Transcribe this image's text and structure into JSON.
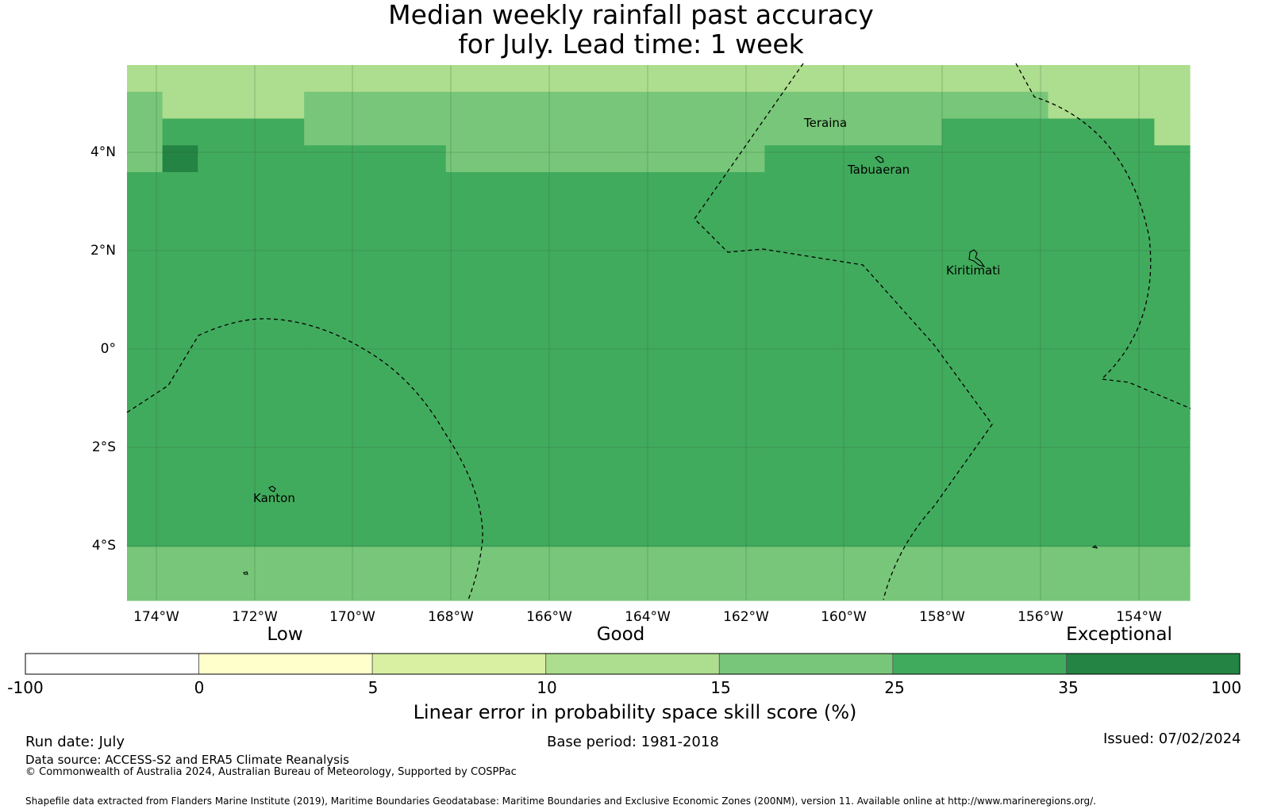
{
  "title": {
    "line1": "Median weekly rainfall past accuracy",
    "line2": "for July. Lead time: 1 week"
  },
  "map": {
    "lat_labels": [
      "4°N",
      "2°N",
      "0°",
      "2°S",
      "4°S"
    ],
    "lon_labels": [
      "174°W",
      "172°W",
      "170°W",
      "168°W",
      "166°W",
      "164°W",
      "162°W",
      "160°W",
      "158°W",
      "156°W",
      "154°W"
    ],
    "places": [
      "Teraina",
      "Tabuaeran",
      "Kiritimati",
      "Kanton"
    ],
    "level_colors": [
      "#ffffff",
      "#ffffcc",
      "#d9f0a3",
      "#addd8e",
      "#78c679",
      "#41ab5d",
      "#238443"
    ],
    "grid_legend": "level index per cell: 3=10–15, 4=15–25, 5=25–35, 6=35–100",
    "grid": [
      "333333333333333333333333333333",
      "433334444444444444444444443333",
      "455554444444444444444445555553",
      "465555555444444444555555555555",
      "555555555555555555555555555555",
      "555555555555555555555555555555",
      "555555555555555555555555555555",
      "555555555555555555555555555555",
      "555555555555555555555555555555",
      "555555555555555555555555555555",
      "555555555555555555555555555555",
      "555555555555555555555555555555",
      "555555555555555555555555555555",
      "555555555555555555555555555555",
      "555555555555555555555555555555",
      "555555555555555555555555555555",
      "555555555555555555555555555555",
      "555555555555555555555555555555",
      "444444444444444444444444444444",
      "444444444444444444444444444444"
    ]
  },
  "colorbar": {
    "bounds": [
      "-100",
      "0",
      "5",
      "10",
      "15",
      "25",
      "35",
      "100"
    ],
    "colors": [
      "#ffffff",
      "#ffffcc",
      "#d9f0a3",
      "#addd8e",
      "#78c679",
      "#41ab5d",
      "#238443"
    ],
    "categories": [
      "Low",
      "Good",
      "Exceptional"
    ],
    "label": "Linear error in probability space skill score (%)"
  },
  "footer": {
    "run_date": "Run date: July",
    "base_period": "Base period: 1981-2018",
    "issued": "Issued: 07/02/2024",
    "data_source": "Data source: ACCESS-S2 and ERA5 Climate Reanalysis",
    "copyright": "© Commonwealth of Australia 2024, Australian Bureau of Meteorology, Supported by COSPPac",
    "shapefile": "Shapefile data extracted from Flanders Marine Institute (2019), Maritime Boundaries Geodatabase: Maritime Boundaries and Exclusive Economic Zones (200NM), version 11. Available online at http://www.marineregions.org/."
  }
}
